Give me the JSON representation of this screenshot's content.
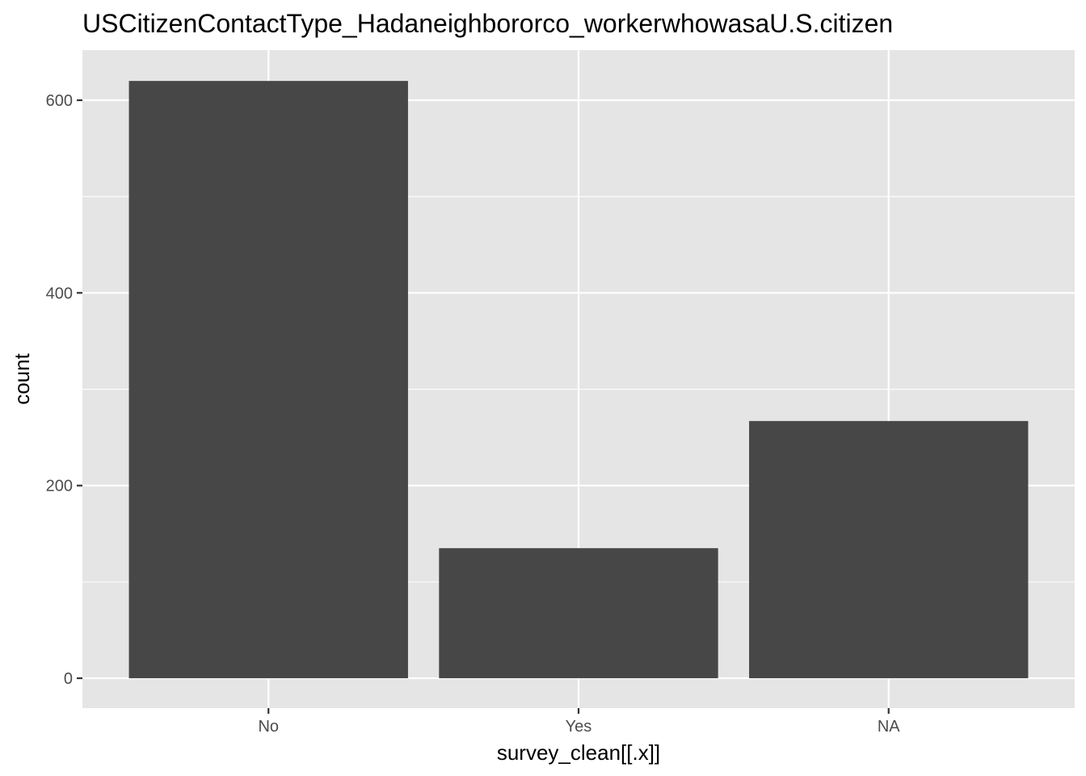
{
  "chart_data": {
    "type": "bar",
    "title": "USCitizenContactType_Hadaneighbororco_workerwhowasaU.S.citizen",
    "xlabel": "survey_clean[[.x]]",
    "ylabel": "count",
    "categories": [
      "No",
      "Yes",
      "NA"
    ],
    "values": [
      620,
      135,
      267
    ],
    "ylim": [
      -31,
      652
    ],
    "yticks": [
      0,
      200,
      400,
      600
    ],
    "ytick_labels": [
      "0",
      "200",
      "400",
      "600"
    ],
    "grid": true,
    "legend": "none",
    "colors": {
      "panel_background": "#e5e5e5",
      "grid_line": "#ffffff",
      "bar_fill": "#474747",
      "tick_mark": "#333333",
      "tick_label": "#4d4d4d",
      "text": "#000000"
    }
  }
}
